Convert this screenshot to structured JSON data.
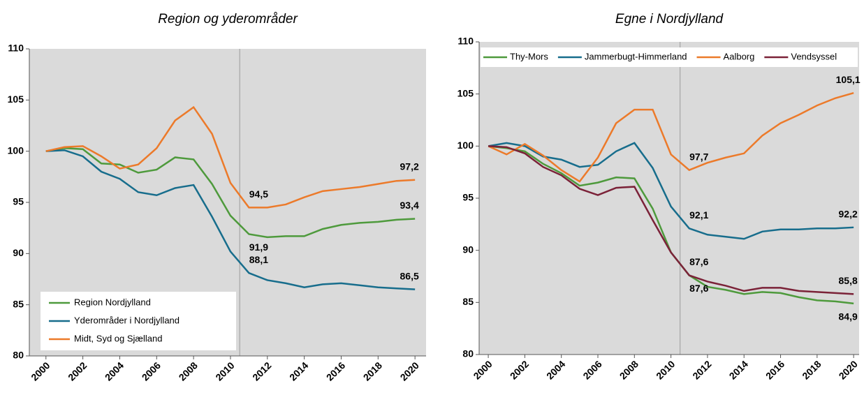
{
  "chart_data": [
    {
      "type": "line",
      "title": "Region og yderområder",
      "x": [
        2000,
        2001,
        2002,
        2003,
        2004,
        2005,
        2006,
        2007,
        2008,
        2009,
        2010,
        2011,
        2012,
        2013,
        2014,
        2015,
        2016,
        2017,
        2018,
        2019,
        2020
      ],
      "xlim": [
        1999.1,
        2020.6
      ],
      "xticks": [
        2000,
        2002,
        2004,
        2006,
        2008,
        2010,
        2012,
        2014,
        2016,
        2018,
        2020
      ],
      "ylim": [
        80,
        110
      ],
      "yticks": [
        80,
        85,
        90,
        95,
        100,
        105,
        110
      ],
      "grid": false,
      "vline": 2010.5,
      "legend": "lower left",
      "series": [
        {
          "name": "Region Nordjylland",
          "color": "#4e9a3c",
          "values": [
            100,
            100.3,
            100.2,
            98.8,
            98.7,
            97.9,
            98.2,
            99.4,
            99.2,
            96.8,
            93.7,
            91.9,
            91.6,
            91.7,
            91.7,
            92.4,
            92.8,
            93.0,
            93.1,
            93.3,
            93.4
          ],
          "value_labels": [
            null,
            null,
            null,
            null,
            null,
            null,
            null,
            null,
            null,
            null,
            null,
            "91,9",
            null,
            null,
            null,
            null,
            null,
            null,
            null,
            null,
            "93,4"
          ]
        },
        {
          "name": "Yderområder i Nordjylland",
          "color": "#176d8c",
          "values": [
            100,
            100.1,
            99.5,
            98.0,
            97.3,
            96.0,
            95.7,
            96.4,
            96.7,
            93.6,
            90.2,
            88.1,
            87.4,
            87.1,
            86.7,
            87.0,
            87.1,
            86.9,
            86.7,
            86.6,
            86.5
          ],
          "value_labels": [
            null,
            null,
            null,
            null,
            null,
            null,
            null,
            null,
            null,
            null,
            null,
            "88,1",
            null,
            null,
            null,
            null,
            null,
            null,
            null,
            null,
            "86,5"
          ]
        },
        {
          "name": "Midt, Syd og Sjælland",
          "color": "#ec7a2a",
          "values": [
            100,
            100.4,
            100.5,
            99.5,
            98.3,
            98.7,
            100.3,
            103.0,
            104.3,
            101.7,
            96.9,
            94.5,
            94.5,
            94.8,
            95.5,
            96.1,
            96.3,
            96.5,
            96.8,
            97.1,
            97.2
          ],
          "value_labels": [
            null,
            null,
            null,
            null,
            null,
            null,
            null,
            null,
            null,
            null,
            null,
            "94,5",
            null,
            null,
            null,
            null,
            null,
            null,
            null,
            null,
            "97,2"
          ]
        }
      ]
    },
    {
      "type": "line",
      "title": "Egne i Nordjylland",
      "x": [
        2000,
        2001,
        2002,
        2003,
        2004,
        2005,
        2006,
        2007,
        2008,
        2009,
        2010,
        2011,
        2012,
        2013,
        2014,
        2015,
        2016,
        2017,
        2018,
        2019,
        2020
      ],
      "xlim": [
        1999.5,
        2020.3
      ],
      "xticks": [
        2000,
        2002,
        2004,
        2006,
        2008,
        2010,
        2012,
        2014,
        2016,
        2018,
        2020
      ],
      "ylim": [
        80,
        110
      ],
      "yticks": [
        80,
        85,
        90,
        95,
        100,
        105,
        110
      ],
      "grid": false,
      "vline": 2010.5,
      "legend": "top",
      "series": [
        {
          "name": "Thy-Mors",
          "color": "#4e9a3c",
          "values": [
            100,
            99.8,
            99.5,
            98.3,
            97.4,
            96.2,
            96.5,
            97.0,
            96.9,
            94.0,
            89.8,
            87.6,
            86.5,
            86.2,
            85.8,
            86.0,
            85.9,
            85.5,
            85.2,
            85.1,
            84.9
          ],
          "value_labels": [
            null,
            null,
            null,
            null,
            null,
            null,
            null,
            null,
            null,
            null,
            null,
            "87,6",
            null,
            null,
            null,
            null,
            null,
            null,
            null,
            null,
            "84,9"
          ]
        },
        {
          "name": "Jammerbugt-Himmerland",
          "color": "#176d8c",
          "values": [
            100,
            100.3,
            100.0,
            99.0,
            98.7,
            98.0,
            98.2,
            99.5,
            100.3,
            97.9,
            94.2,
            92.1,
            91.5,
            91.3,
            91.1,
            91.8,
            92.0,
            92.0,
            92.1,
            92.1,
            92.2
          ],
          "value_labels": [
            null,
            null,
            null,
            null,
            null,
            null,
            null,
            null,
            null,
            null,
            null,
            "92,1",
            null,
            null,
            null,
            null,
            null,
            null,
            null,
            null,
            "92,2"
          ]
        },
        {
          "name": "Aalborg",
          "color": "#ec7a2a",
          "values": [
            100,
            99.2,
            100.2,
            99.1,
            97.7,
            96.6,
            98.9,
            102.2,
            103.5,
            103.5,
            99.2,
            97.7,
            98.4,
            98.9,
            99.3,
            101.0,
            102.2,
            103.0,
            103.9,
            104.6,
            105.1
          ],
          "value_labels": [
            null,
            null,
            null,
            null,
            null,
            null,
            null,
            null,
            null,
            null,
            null,
            "97,7",
            null,
            null,
            null,
            null,
            null,
            null,
            null,
            null,
            "105,1"
          ]
        },
        {
          "name": "Vendsyssel",
          "color": "#7b2238",
          "values": [
            100,
            99.9,
            99.3,
            98.0,
            97.2,
            95.9,
            95.3,
            96.0,
            96.1,
            92.9,
            89.8,
            87.6,
            87.0,
            86.6,
            86.1,
            86.4,
            86.4,
            86.1,
            86.0,
            85.9,
            85.8
          ],
          "value_labels": [
            null,
            null,
            null,
            null,
            null,
            null,
            null,
            null,
            null,
            null,
            null,
            "87,6",
            null,
            null,
            null,
            null,
            null,
            null,
            null,
            null,
            "85,8"
          ]
        }
      ]
    }
  ]
}
